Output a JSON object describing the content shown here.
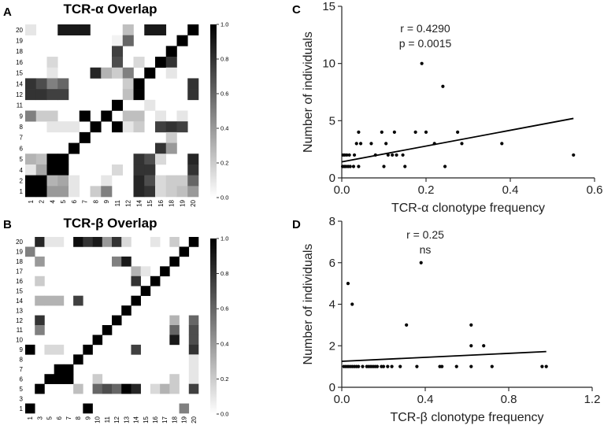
{
  "panels": {
    "A": {
      "letter": "A",
      "title": "TCR-α Overlap",
      "labels": [
        "1",
        "2",
        "4",
        "5",
        "6",
        "7",
        "8",
        "9",
        "11",
        "12",
        "14",
        "15",
        "16",
        "18",
        "19",
        "20"
      ],
      "colorbar_ticks": [
        "0.0",
        "0.2",
        "0.4",
        "0.6",
        "0.8",
        "1.0"
      ],
      "matrix": [
        [
          0.1,
          0,
          0,
          0.9,
          0.9,
          0.9,
          0,
          0,
          0,
          0.25,
          0,
          0.9,
          0.9,
          0,
          0,
          1
        ],
        [
          0,
          0,
          0,
          0,
          0,
          0,
          0,
          0,
          0.05,
          0.6,
          0,
          0,
          0,
          0,
          1,
          0
        ],
        [
          0,
          0,
          0,
          0,
          0,
          0,
          0,
          0,
          0.75,
          0,
          0,
          0,
          0,
          1,
          0,
          0
        ],
        [
          0,
          0,
          0.15,
          0,
          0,
          0,
          0,
          0,
          0.7,
          0,
          0.15,
          0,
          1,
          0.8,
          0,
          0
        ],
        [
          0,
          0,
          0.1,
          0,
          0,
          0,
          0.85,
          0.3,
          0.2,
          0.5,
          0,
          1,
          0,
          0.1,
          0,
          0
        ],
        [
          0.8,
          0.7,
          0.5,
          0.6,
          0,
          0,
          0,
          0,
          0,
          0.2,
          1,
          0,
          0,
          0,
          0,
          0.8
        ],
        [
          0.8,
          0.8,
          0.75,
          0.75,
          0,
          0,
          0,
          0,
          0,
          0.25,
          1,
          0,
          0,
          0,
          0,
          0.8
        ],
        [
          0,
          0,
          0,
          0,
          0,
          0,
          0,
          0,
          1,
          0,
          0,
          0.1,
          0,
          0,
          0,
          0
        ],
        [
          0.5,
          0.2,
          0.2,
          0,
          0,
          1,
          0,
          1,
          0,
          0.25,
          0.25,
          0,
          0.1,
          0,
          0.1,
          0
        ],
        [
          0,
          0,
          0.1,
          0.1,
          0.1,
          0,
          1,
          0,
          1,
          0.1,
          0.2,
          0,
          0.75,
          0.8,
          0.75,
          0
        ],
        [
          0,
          0,
          0,
          0,
          0,
          1,
          0,
          0,
          0,
          0,
          0,
          0,
          0,
          0.2,
          0,
          0
        ],
        [
          0,
          0,
          0,
          0,
          1,
          0,
          0,
          0,
          0,
          0,
          0,
          0,
          0.8,
          0.4,
          0,
          0
        ],
        [
          0.3,
          0.25,
          1,
          1,
          0,
          0,
          0,
          0,
          0,
          0,
          0.8,
          0.7,
          0.15,
          0,
          0,
          0.85
        ],
        [
          0.1,
          0.35,
          1,
          1,
          0,
          0,
          0,
          0,
          0.15,
          0,
          0.8,
          0.8,
          0,
          0,
          0,
          0.8
        ],
        [
          1,
          1,
          0.3,
          0.35,
          0.1,
          0,
          0,
          0.1,
          0,
          0,
          0.85,
          0.7,
          0.15,
          0.2,
          0.2,
          0.6
        ],
        [
          1,
          1,
          0.4,
          0.4,
          0.1,
          0,
          0.2,
          0.5,
          0,
          0,
          0.85,
          0.8,
          0.15,
          0.2,
          0.25,
          0.4
        ]
      ]
    },
    "B": {
      "letter": "B",
      "title": "TCR-β Overlap",
      "labels": [
        "1",
        "3",
        "5",
        "6",
        "7",
        "8",
        "9",
        "10",
        "11",
        "12",
        "13",
        "14",
        "15",
        "16",
        "17",
        "18",
        "19",
        "20"
      ],
      "colorbar_ticks": [
        "0.0",
        "0.2",
        "0.4",
        "0.6",
        "0.8",
        "1.0"
      ],
      "matrix": [
        [
          0,
          0.85,
          0.1,
          0.1,
          0,
          0.95,
          0.8,
          0.9,
          0.4,
          0.8,
          0.15,
          0,
          0,
          0.1,
          0,
          0.2,
          0,
          1
        ],
        [
          0.5,
          0,
          0,
          0,
          0,
          0,
          0,
          0,
          0,
          0,
          0,
          0,
          0,
          0,
          0,
          0,
          1,
          0
        ],
        [
          0,
          0.4,
          0,
          0,
          0,
          0,
          0,
          0,
          0,
          0.5,
          0.9,
          0,
          0,
          0,
          0,
          1,
          0,
          0
        ],
        [
          0,
          0,
          0,
          0,
          0,
          0,
          0,
          0,
          0,
          0,
          0,
          0.3,
          0.1,
          0,
          1,
          0,
          0,
          0
        ],
        [
          0,
          0.2,
          0,
          0,
          0,
          0,
          0,
          0,
          0,
          0,
          0,
          0.8,
          0,
          1,
          0,
          0,
          0,
          0
        ],
        [
          0,
          0,
          0,
          0,
          0,
          0,
          0,
          0,
          0,
          0,
          0,
          0,
          1,
          0,
          0,
          0,
          0,
          0
        ],
        [
          0,
          0.3,
          0.3,
          0.3,
          0,
          0.75,
          0,
          0,
          0,
          0,
          0,
          1,
          0,
          0,
          0,
          0,
          0,
          0
        ],
        [
          0,
          0,
          0,
          0,
          0,
          0,
          0,
          0,
          0,
          0,
          1,
          0,
          0,
          0,
          0,
          0,
          0,
          0
        ],
        [
          0,
          0.8,
          0,
          0,
          0,
          0,
          0,
          0,
          0,
          1,
          0,
          0,
          0,
          0,
          0,
          0.3,
          0,
          0.6
        ],
        [
          0,
          0.5,
          0,
          0,
          0,
          0,
          0,
          0,
          1,
          0,
          0,
          0,
          0,
          0,
          0,
          0.6,
          0,
          0.7
        ],
        [
          0,
          0,
          0,
          0,
          0,
          0,
          0,
          1,
          0,
          0,
          0,
          0,
          0,
          0,
          0,
          0.9,
          0,
          0.7
        ],
        [
          1,
          0,
          0.15,
          0.15,
          0,
          0,
          1,
          0,
          0,
          0,
          0,
          0.75,
          0,
          0,
          0,
          0,
          0,
          0.8
        ],
        [
          0,
          0,
          0,
          0,
          0,
          1,
          0,
          0,
          0,
          0,
          0,
          0,
          0,
          0,
          0,
          0,
          0,
          0.1
        ],
        [
          0,
          0,
          0,
          1,
          1,
          0,
          0,
          0,
          0,
          0,
          0,
          0,
          0,
          0,
          0,
          0,
          0,
          0.1
        ],
        [
          0,
          0,
          1,
          1,
          1,
          0,
          0,
          0.2,
          0,
          0,
          0,
          0,
          0,
          0,
          0,
          0.2,
          0,
          0.1
        ],
        [
          0,
          1,
          0,
          0,
          0,
          0.25,
          0,
          0.6,
          0.7,
          0.6,
          1,
          0.85,
          0,
          0.15,
          0.3,
          0.2,
          0,
          0.75
        ],
        [
          0,
          0,
          0,
          0,
          0,
          0,
          0,
          0,
          0,
          0,
          0,
          0,
          0,
          0,
          0,
          0,
          0,
          0
        ],
        [
          1,
          0,
          0,
          0,
          0,
          0,
          1,
          0,
          0,
          0,
          0,
          0,
          0,
          0,
          0,
          0,
          0.5,
          0
        ]
      ]
    },
    "C": {
      "letter": "C",
      "annot1": "r = 0.4290",
      "annot2": "p = 0.0015"
    },
    "D": {
      "letter": "D",
      "annot1": "r = 0.25",
      "annot2": "ns"
    }
  },
  "chart_data": [
    {
      "type": "heatmap",
      "title": "TCR-α Overlap",
      "xlabel": "",
      "ylabel": "",
      "value_range": [
        0.0,
        1.0
      ]
    },
    {
      "type": "heatmap",
      "title": "TCR-β Overlap",
      "xlabel": "",
      "ylabel": "",
      "value_range": [
        0.0,
        1.0
      ]
    },
    {
      "type": "scatter",
      "title": "",
      "xlabel": "TCR-α clonotype frequency",
      "ylabel": "Number of individuals",
      "xlim": [
        0,
        0.6
      ],
      "ylim": [
        0,
        15
      ],
      "xticks": [
        "0.0",
        "0.2",
        "0.4",
        "0.6"
      ],
      "yticks": [
        "0",
        "5",
        "10",
        "15"
      ],
      "points": [
        [
          0.002,
          1
        ],
        [
          0.006,
          1
        ],
        [
          0.01,
          1
        ],
        [
          0.015,
          1
        ],
        [
          0.02,
          1
        ],
        [
          0.028,
          1
        ],
        [
          0.04,
          1
        ],
        [
          0.003,
          2
        ],
        [
          0.007,
          2
        ],
        [
          0.012,
          2
        ],
        [
          0.018,
          2
        ],
        [
          0.03,
          2
        ],
        [
          0.035,
          3
        ],
        [
          0.04,
          4
        ],
        [
          0.045,
          3
        ],
        [
          0.07,
          3
        ],
        [
          0.08,
          2
        ],
        [
          0.095,
          4
        ],
        [
          0.1,
          1
        ],
        [
          0.105,
          3
        ],
        [
          0.11,
          2
        ],
        [
          0.12,
          2
        ],
        [
          0.125,
          4
        ],
        [
          0.13,
          2
        ],
        [
          0.145,
          2
        ],
        [
          0.15,
          1
        ],
        [
          0.175,
          4
        ],
        [
          0.19,
          10
        ],
        [
          0.2,
          4
        ],
        [
          0.22,
          3
        ],
        [
          0.24,
          8
        ],
        [
          0.245,
          1
        ],
        [
          0.275,
          4
        ],
        [
          0.285,
          3
        ],
        [
          0.38,
          3
        ],
        [
          0.55,
          2
        ]
      ],
      "fit_line": {
        "x": [
          0,
          0.55
        ],
        "y": [
          1.4,
          5.2
        ]
      },
      "annotations": [
        "r = 0.4290",
        "p = 0.0015"
      ]
    },
    {
      "type": "scatter",
      "title": "",
      "xlabel": "TCR-β clonotype frequency",
      "ylabel": "Number of individuals",
      "xlim": [
        0,
        1.2
      ],
      "ylim": [
        0,
        8
      ],
      "xticks": [
        "0.0",
        "0.4",
        "0.8",
        "1.2"
      ],
      "yticks": [
        "0",
        "2",
        "4",
        "6",
        "8"
      ],
      "points": [
        [
          0.01,
          1
        ],
        [
          0.02,
          1
        ],
        [
          0.03,
          1
        ],
        [
          0.04,
          1
        ],
        [
          0.05,
          1
        ],
        [
          0.06,
          1
        ],
        [
          0.07,
          1
        ],
        [
          0.08,
          1
        ],
        [
          0.1,
          1
        ],
        [
          0.12,
          1
        ],
        [
          0.13,
          1
        ],
        [
          0.14,
          1
        ],
        [
          0.15,
          1
        ],
        [
          0.16,
          1
        ],
        [
          0.17,
          1
        ],
        [
          0.19,
          1
        ],
        [
          0.2,
          1
        ],
        [
          0.22,
          1
        ],
        [
          0.24,
          1
        ],
        [
          0.28,
          1
        ],
        [
          0.36,
          1
        ],
        [
          0.47,
          1
        ],
        [
          0.48,
          1
        ],
        [
          0.55,
          1
        ],
        [
          0.62,
          1
        ],
        [
          0.72,
          1
        ],
        [
          0.96,
          1
        ],
        [
          0.98,
          1
        ],
        [
          0.03,
          5
        ],
        [
          0.05,
          4
        ],
        [
          0.31,
          3
        ],
        [
          0.38,
          6
        ],
        [
          0.62,
          3
        ],
        [
          0.62,
          2
        ],
        [
          0.68,
          2
        ]
      ],
      "fit_line": {
        "x": [
          0,
          0.98
        ],
        "y": [
          1.25,
          1.72
        ]
      },
      "annotations": [
        "r = 0.25",
        "ns"
      ]
    }
  ]
}
